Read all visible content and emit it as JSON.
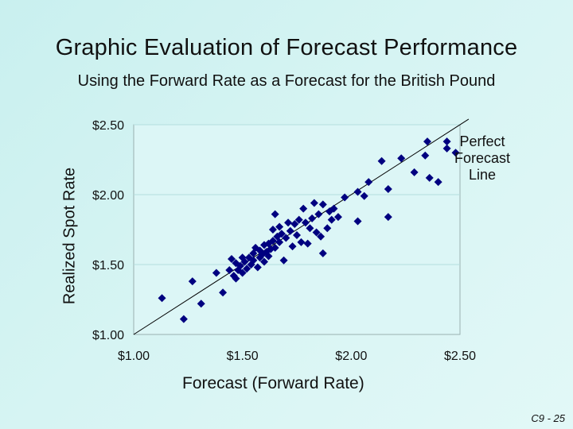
{
  "slide": {
    "title": "Graphic Evaluation of Forecast Performance",
    "subtitle": "Using the Forward Rate as a Forecast for the British Pound",
    "slide_number": "C9 - 25"
  },
  "chart_data": {
    "type": "scatter",
    "title": "",
    "xlabel": "Forecast (Forward Rate)",
    "ylabel": "Realized Spot Rate",
    "xlim": [
      1.0,
      2.5
    ],
    "ylim": [
      1.0,
      2.5
    ],
    "x_ticks": [
      "$1.00",
      "$1.50",
      "$2.00",
      "$2.50"
    ],
    "y_ticks": [
      "$1.00",
      "$1.50",
      "$2.00",
      "$2.50"
    ],
    "x_tick_values": [
      1.0,
      1.5,
      2.0,
      2.5
    ],
    "y_tick_values": [
      1.0,
      1.5,
      2.0,
      2.5
    ],
    "grid": "horizontal",
    "marker_color": "#000080",
    "reference_line": {
      "label": "Perfect Forecast Line",
      "from": [
        1.0,
        1.0
      ],
      "to": [
        2.5,
        2.5
      ]
    },
    "points": [
      [
        1.13,
        1.26
      ],
      [
        1.23,
        1.11
      ],
      [
        1.27,
        1.38
      ],
      [
        1.31,
        1.22
      ],
      [
        1.38,
        1.44
      ],
      [
        1.41,
        1.3
      ],
      [
        1.44,
        1.46
      ],
      [
        1.45,
        1.54
      ],
      [
        1.46,
        1.42
      ],
      [
        1.47,
        1.51
      ],
      [
        1.47,
        1.4
      ],
      [
        1.48,
        1.46
      ],
      [
        1.49,
        1.49
      ],
      [
        1.5,
        1.55
      ],
      [
        1.5,
        1.44
      ],
      [
        1.51,
        1.52
      ],
      [
        1.52,
        1.47
      ],
      [
        1.53,
        1.55
      ],
      [
        1.54,
        1.5
      ],
      [
        1.55,
        1.58
      ],
      [
        1.55,
        1.53
      ],
      [
        1.56,
        1.62
      ],
      [
        1.57,
        1.48
      ],
      [
        1.58,
        1.55
      ],
      [
        1.58,
        1.6
      ],
      [
        1.59,
        1.57
      ],
      [
        1.6,
        1.64
      ],
      [
        1.6,
        1.52
      ],
      [
        1.61,
        1.59
      ],
      [
        1.62,
        1.65
      ],
      [
        1.62,
        1.56
      ],
      [
        1.63,
        1.61
      ],
      [
        1.64,
        1.67
      ],
      [
        1.64,
        1.75
      ],
      [
        1.65,
        1.62
      ],
      [
        1.65,
        1.86
      ],
      [
        1.66,
        1.7
      ],
      [
        1.67,
        1.66
      ],
      [
        1.67,
        1.77
      ],
      [
        1.68,
        1.72
      ],
      [
        1.69,
        1.53
      ],
      [
        1.7,
        1.69
      ],
      [
        1.71,
        1.8
      ],
      [
        1.72,
        1.74
      ],
      [
        1.73,
        1.63
      ],
      [
        1.74,
        1.79
      ],
      [
        1.75,
        1.71
      ],
      [
        1.76,
        1.82
      ],
      [
        1.77,
        1.66
      ],
      [
        1.78,
        1.9
      ],
      [
        1.79,
        1.8
      ],
      [
        1.8,
        1.65
      ],
      [
        1.81,
        1.76
      ],
      [
        1.82,
        1.83
      ],
      [
        1.83,
        1.94
      ],
      [
        1.84,
        1.73
      ],
      [
        1.85,
        1.86
      ],
      [
        1.86,
        1.7
      ],
      [
        1.87,
        1.93
      ],
      [
        1.87,
        1.58
      ],
      [
        1.89,
        1.76
      ],
      [
        1.9,
        1.88
      ],
      [
        1.91,
        1.82
      ],
      [
        1.92,
        1.9
      ],
      [
        1.94,
        1.84
      ],
      [
        1.97,
        1.98
      ],
      [
        2.03,
        1.81
      ],
      [
        2.03,
        2.02
      ],
      [
        2.06,
        1.99
      ],
      [
        2.08,
        2.09
      ],
      [
        2.14,
        2.24
      ],
      [
        2.17,
        2.04
      ],
      [
        2.17,
        1.84
      ],
      [
        2.23,
        2.26
      ],
      [
        2.29,
        2.16
      ],
      [
        2.34,
        2.28
      ],
      [
        2.35,
        2.38
      ],
      [
        2.36,
        2.12
      ],
      [
        2.4,
        2.09
      ],
      [
        2.44,
        2.38
      ],
      [
        2.44,
        2.33
      ],
      [
        2.48,
        2.3
      ]
    ]
  }
}
